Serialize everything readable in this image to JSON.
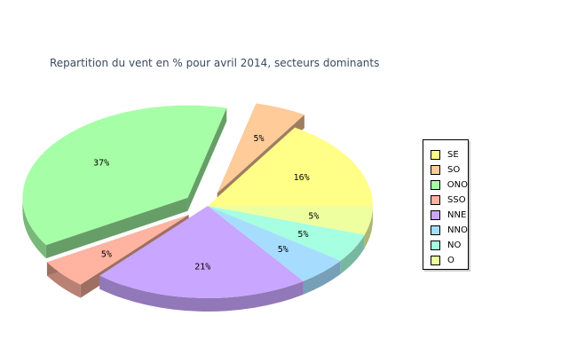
{
  "chart_data": {
    "type": "pie",
    "title": "Repartition du vent en % pour avril 2014, secteurs dominants",
    "slices": [
      {
        "name": "SE",
        "value": 16,
        "label": "16%",
        "color": "#ffff88",
        "exploded": false
      },
      {
        "name": "SO",
        "value": 5,
        "label": "5%",
        "color": "#ffcc99",
        "exploded": true
      },
      {
        "name": "ONO",
        "value": 37,
        "label": "37%",
        "color": "#a6ffa6",
        "exploded": true
      },
      {
        "name": "SSO",
        "value": 5,
        "label": "5%",
        "color": "#ffb3a0",
        "exploded": true
      },
      {
        "name": "NNE",
        "value": 21,
        "label": "21%",
        "color": "#c9a6ff",
        "exploded": false
      },
      {
        "name": "NNO",
        "value": 5,
        "label": "5%",
        "color": "#a6ddff",
        "exploded": false
      },
      {
        "name": "NO",
        "value": 5,
        "label": "5%",
        "color": "#a6ffe0",
        "exploded": false
      },
      {
        "name": "O",
        "value": 5,
        "label": "5%",
        "color": "#eeffa0",
        "exploded": false
      }
    ],
    "legend_position": "right",
    "style": "3d"
  }
}
